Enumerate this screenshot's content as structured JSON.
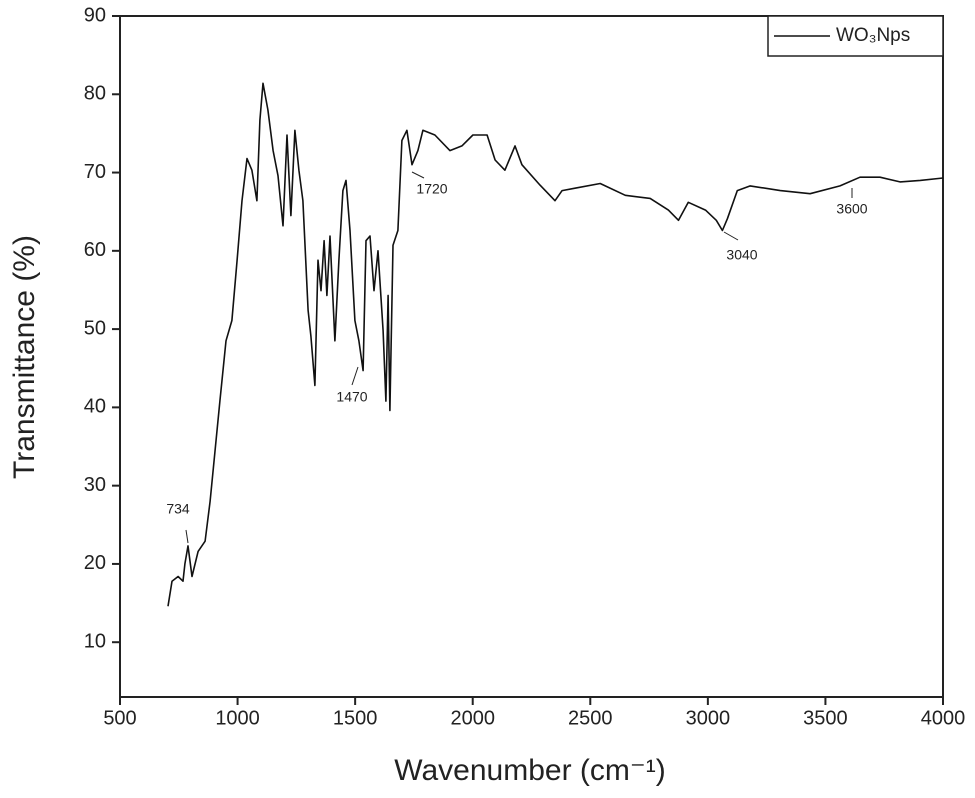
{
  "chart_data": {
    "type": "line",
    "x_label": "Wavenumber (cm⁻¹)",
    "y_label": "Transmittance (%)",
    "xlim": [
      500,
      4000
    ],
    "ylim": [
      3,
      90
    ],
    "xticks": [
      500,
      1000,
      1500,
      2000,
      2500,
      3000,
      3500,
      4000
    ],
    "yticks": [
      10,
      20,
      30,
      40,
      50,
      60,
      70,
      80,
      90
    ],
    "grid": false,
    "legend": "top-right",
    "annotations": [
      "734",
      "1470",
      "1720",
      "3040",
      "3600"
    ],
    "x": [
      704,
      721,
      747,
      768,
      776,
      789,
      806,
      832,
      862,
      883,
      904,
      925,
      951,
      976,
      998,
      1019,
      1040,
      1061,
      1082,
      1095,
      1108,
      1129,
      1151,
      1172,
      1193,
      1210,
      1227,
      1244,
      1261,
      1278,
      1300,
      1312,
      1329,
      1342,
      1355,
      1368,
      1380,
      1393,
      1414,
      1431,
      1448,
      1461,
      1478,
      1499,
      1516,
      1534,
      1546,
      1563,
      1580,
      1597,
      1619,
      1631,
      1640,
      1648,
      1661,
      1682,
      1699,
      1720,
      1742,
      1767,
      1788,
      1839,
      1903,
      1954,
      2001,
      2061,
      2095,
      2137,
      2180,
      2209,
      2286,
      2350,
      2380,
      2435,
      2542,
      2649,
      2755,
      2832,
      2875,
      2917,
      2990,
      3036,
      3062,
      3083,
      3125,
      3180,
      3308,
      3435,
      3562,
      3647,
      3732,
      3817,
      3903,
      4000
    ],
    "series": [
      {
        "name": "WO₃Nps",
        "color": "#111111",
        "values": [
          14.6,
          17.8,
          18.4,
          17.8,
          20,
          22.3,
          18.4,
          21.6,
          22.9,
          28,
          34.4,
          40.8,
          48.5,
          51.1,
          58.8,
          66.4,
          71.8,
          70.3,
          66.4,
          76.7,
          81.4,
          78,
          72.8,
          69.6,
          63.2,
          74.8,
          64.5,
          75.4,
          70.3,
          66.4,
          52.4,
          49.1,
          42.8,
          58.8,
          54.9,
          61.3,
          54.3,
          61.9,
          48.5,
          58.8,
          67.7,
          69,
          62.6,
          51.1,
          48.5,
          44.7,
          61.3,
          61.9,
          54.9,
          60,
          49.8,
          40.8,
          54.3,
          39.6,
          60.7,
          62.6,
          74.1,
          75.4,
          71,
          72.8,
          75.4,
          74.8,
          72.8,
          73.4,
          74.8,
          74.8,
          71.6,
          70.3,
          73.4,
          71,
          68.4,
          66.4,
          67.7,
          68,
          68.6,
          67.1,
          66.7,
          65.2,
          63.9,
          66.2,
          65.2,
          63.9,
          62.6,
          64.1,
          67.7,
          68.3,
          67.7,
          67.3,
          68.3,
          69.4,
          69.4,
          68.8,
          69,
          69.3
        ]
      }
    ]
  }
}
